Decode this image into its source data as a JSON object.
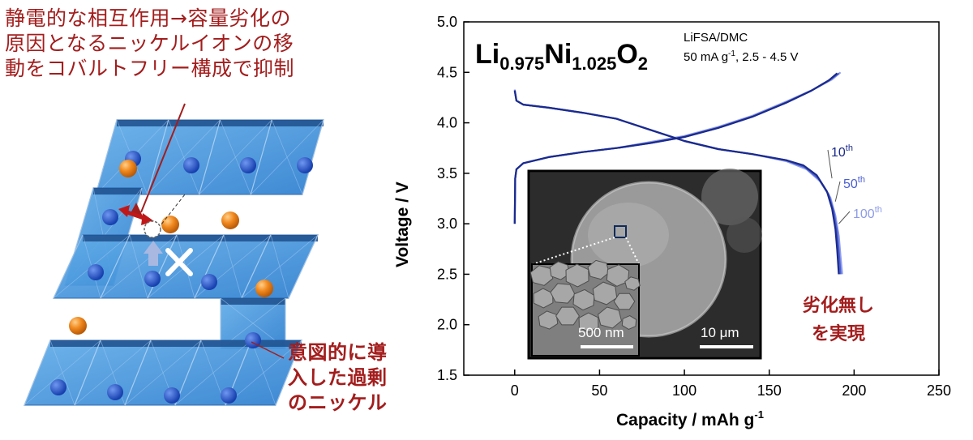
{
  "colors": {
    "annotation_red": "#a31d1d",
    "octahedron_blue": "#3d8fde",
    "cation_blue": "#1e52c8",
    "nickel_orange": "#e07a16",
    "cycle_10": "#1a2a8c",
    "cycle_50": "#4a5fd4",
    "cycle_100": "#8e9ce8"
  },
  "annotations": {
    "top_left": [
      "静電的な相互作用→容量劣化の",
      "原因となるニッケルイオンの移",
      "動をコバルトフリー構成で抑制"
    ],
    "bottom_right": [
      "意図的に導",
      "入した過剰",
      "のニッケル"
    ],
    "chart_right": [
      "劣化無し",
      "を実現"
    ]
  },
  "icons": {
    "migration_arrow": "red-double-arrow-icon",
    "blocked_mark": "white-x-icon",
    "upward_arrow": "blue-up-arrow-icon"
  },
  "chart_data": {
    "type": "line",
    "formula": {
      "parts": [
        {
          "text": "Li",
          "sub": false
        },
        {
          "text": "0.975",
          "sub": true
        },
        {
          "text": "Ni",
          "sub": false
        },
        {
          "text": "1.025",
          "sub": true
        },
        {
          "text": "O",
          "sub": false
        },
        {
          "text": "2",
          "sub": true
        }
      ]
    },
    "conditions": {
      "electrolyte": "LiFSA/DMC",
      "rate_prefix": "50 mA g",
      "rate_sup": "-1",
      "rate_suffix": ", 2.5 - 4.5 V"
    },
    "xlabel": {
      "text": "Capacity   /   mAh g",
      "sup": "-1"
    },
    "ylabel": "Voltage   /   V",
    "xlim": [
      -30,
      250
    ],
    "ylim": [
      1.5,
      5.0
    ],
    "xticks": [
      0,
      50,
      100,
      150,
      200,
      250
    ],
    "yticks": [
      1.5,
      2.0,
      2.5,
      3.0,
      3.5,
      4.0,
      4.5,
      5.0
    ],
    "ytick_labels": [
      "1.5",
      "2.0",
      "2.5",
      "3.0",
      "3.5",
      "4.0",
      "4.5",
      "5.0"
    ],
    "series": [
      {
        "name": "10",
        "sup": "th",
        "color": "#1a2a8c",
        "charge": [
          [
            0,
            3.0
          ],
          [
            0.3,
            3.45
          ],
          [
            1,
            3.54
          ],
          [
            5,
            3.6
          ],
          [
            20,
            3.66
          ],
          [
            40,
            3.71
          ],
          [
            60,
            3.75
          ],
          [
            80,
            3.8
          ],
          [
            100,
            3.86
          ],
          [
            120,
            3.95
          ],
          [
            140,
            4.06
          ],
          [
            160,
            4.2
          ],
          [
            175,
            4.32
          ],
          [
            185,
            4.42
          ],
          [
            190,
            4.49
          ]
        ],
        "discharge": [
          [
            0,
            4.32
          ],
          [
            1,
            4.22
          ],
          [
            5,
            4.18
          ],
          [
            20,
            4.15
          ],
          [
            40,
            4.1
          ],
          [
            60,
            4.04
          ],
          [
            80,
            3.93
          ],
          [
            100,
            3.82
          ],
          [
            120,
            3.74
          ],
          [
            140,
            3.69
          ],
          [
            160,
            3.63
          ],
          [
            170,
            3.58
          ],
          [
            178,
            3.48
          ],
          [
            184,
            3.32
          ],
          [
            187,
            3.15
          ],
          [
            189,
            2.95
          ],
          [
            190,
            2.75
          ],
          [
            191,
            2.5
          ]
        ]
      },
      {
        "name": "50",
        "sup": "th",
        "color": "#4a5fd4",
        "charge": [
          [
            0,
            3.0
          ],
          [
            0.3,
            3.45
          ],
          [
            1,
            3.54
          ],
          [
            5,
            3.6
          ],
          [
            20,
            3.66
          ],
          [
            40,
            3.71
          ],
          [
            60,
            3.75
          ],
          [
            80,
            3.8
          ],
          [
            100,
            3.86
          ],
          [
            120,
            3.95
          ],
          [
            140,
            4.06
          ],
          [
            160,
            4.2
          ],
          [
            175,
            4.32
          ],
          [
            186,
            4.43
          ],
          [
            191,
            4.49
          ]
        ],
        "discharge": [
          [
            0,
            4.32
          ],
          [
            1,
            4.22
          ],
          [
            5,
            4.18
          ],
          [
            20,
            4.15
          ],
          [
            40,
            4.1
          ],
          [
            60,
            4.04
          ],
          [
            80,
            3.93
          ],
          [
            100,
            3.82
          ],
          [
            120,
            3.74
          ],
          [
            140,
            3.69
          ],
          [
            160,
            3.63
          ],
          [
            171,
            3.56
          ],
          [
            179,
            3.45
          ],
          [
            185,
            3.29
          ],
          [
            188,
            3.12
          ],
          [
            190,
            2.92
          ],
          [
            191,
            2.72
          ],
          [
            192,
            2.5
          ]
        ]
      },
      {
        "name": "100",
        "sup": "th",
        "color": "#8e9ce8",
        "charge": [
          [
            0,
            3.0
          ],
          [
            0.3,
            3.45
          ],
          [
            1,
            3.54
          ],
          [
            5,
            3.6
          ],
          [
            20,
            3.66
          ],
          [
            40,
            3.71
          ],
          [
            60,
            3.75
          ],
          [
            80,
            3.81
          ],
          [
            100,
            3.87
          ],
          [
            120,
            3.96
          ],
          [
            140,
            4.07
          ],
          [
            160,
            4.21
          ],
          [
            176,
            4.33
          ],
          [
            187,
            4.43
          ],
          [
            192,
            4.5
          ]
        ],
        "discharge": [
          [
            0,
            4.33
          ],
          [
            1,
            4.22
          ],
          [
            5,
            4.18
          ],
          [
            20,
            4.15
          ],
          [
            40,
            4.1
          ],
          [
            60,
            4.04
          ],
          [
            80,
            3.93
          ],
          [
            100,
            3.82
          ],
          [
            120,
            3.74
          ],
          [
            140,
            3.69
          ],
          [
            160,
            3.62
          ],
          [
            172,
            3.54
          ],
          [
            180,
            3.42
          ],
          [
            186,
            3.26
          ],
          [
            189,
            3.08
          ],
          [
            191,
            2.88
          ],
          [
            192,
            2.68
          ],
          [
            193,
            2.5
          ]
        ]
      }
    ],
    "inset": {
      "main_scale_label": "10 μm",
      "zoom_scale_label": "500 nm"
    }
  }
}
